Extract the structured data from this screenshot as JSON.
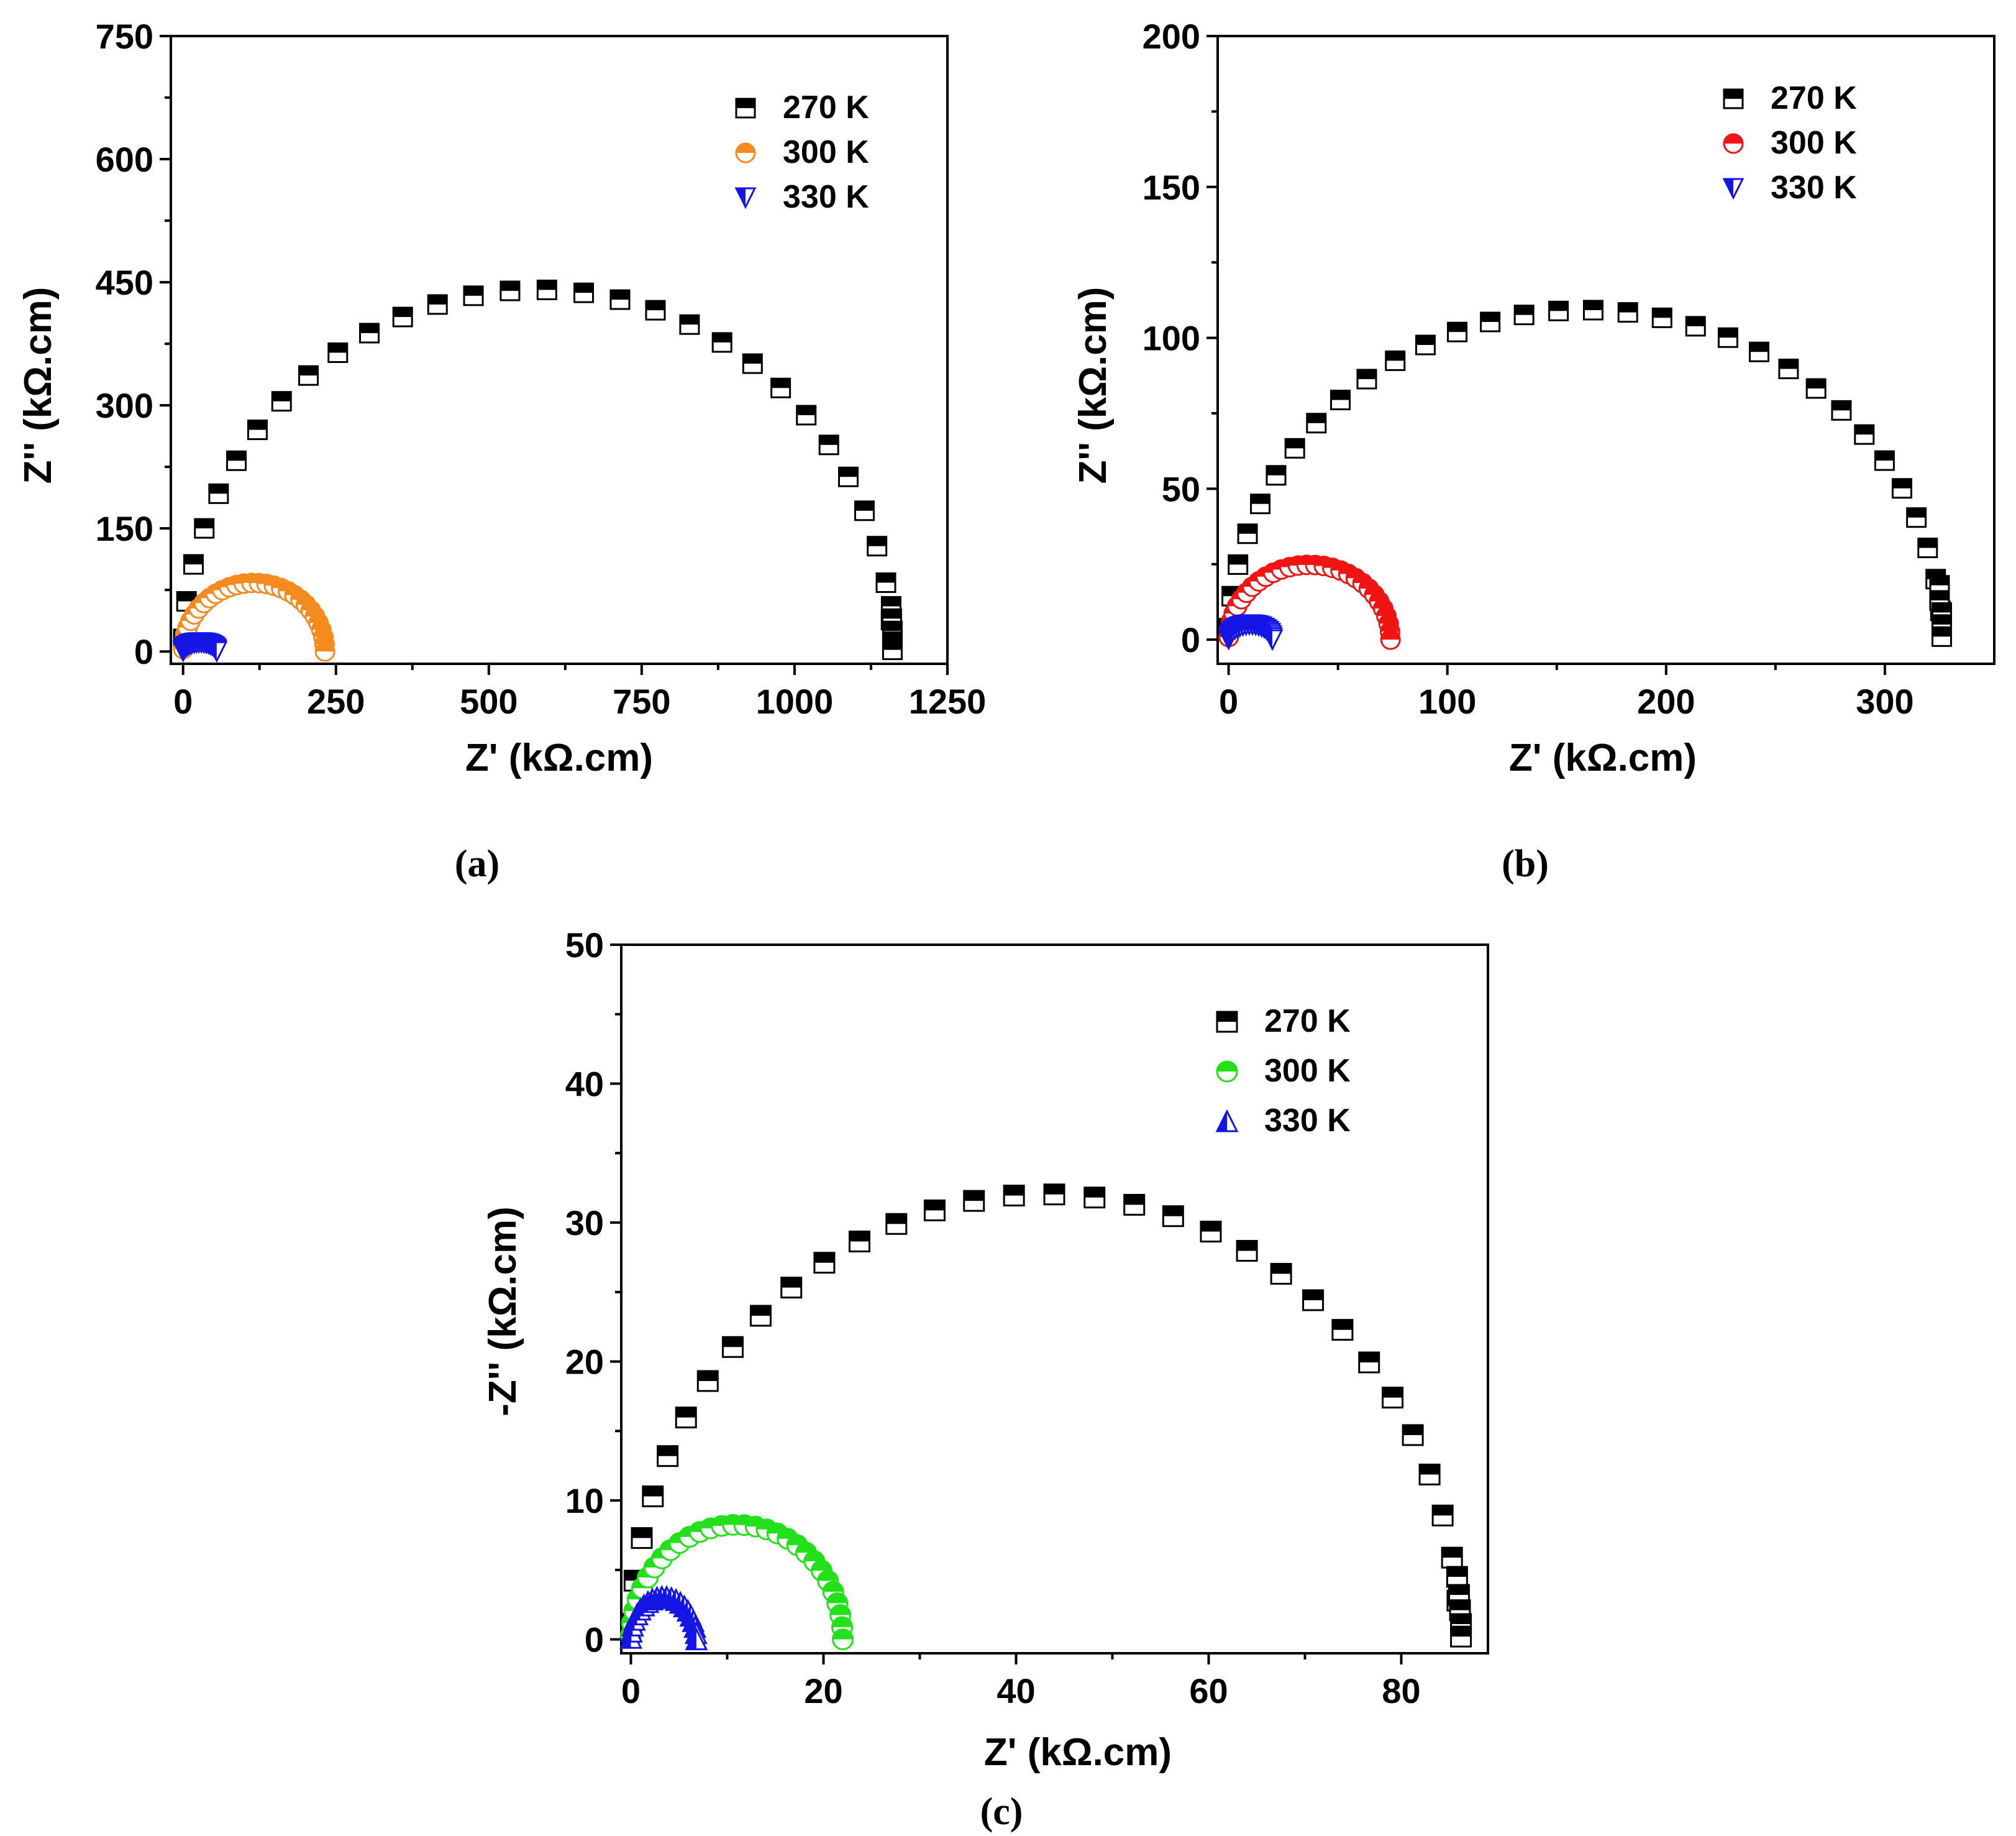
{
  "chart_data": [
    {
      "panel": "(a)",
      "type": "scatter",
      "xlabel": "Z' (kΩ.cm)",
      "ylabel": "Z'' (kΩ.cm)",
      "xlim": [
        -20,
        1250
      ],
      "ylim": [
        -15,
        750
      ],
      "xticks": [
        0,
        250,
        500,
        750,
        1000,
        1250
      ],
      "yticks": [
        0,
        150,
        300,
        450,
        600,
        750
      ],
      "legend_position": "top-right",
      "series": [
        {
          "name": "270 K",
          "marker": "square-half",
          "color": "#000000",
          "R": 1160,
          "start_deg": 178,
          "end_deg": 5,
          "n": 30,
          "tail": [
            [
              1158,
              55
            ],
            [
              1159,
              40
            ],
            [
              1160,
              25
            ],
            [
              1160,
              12
            ],
            [
              1160,
              2
            ]
          ]
        },
        {
          "name": "300 K",
          "marker": "circle-half",
          "color": "#f58a1e",
          "R": 232,
          "start_deg": 178,
          "end_deg": 0,
          "n": 30,
          "squash": 0.72,
          "tail": []
        },
        {
          "name": "330 K",
          "marker": "triangle-down-half",
          "color": "#1515e6",
          "R": 55,
          "start_deg": 178,
          "end_deg": 0,
          "n": 22,
          "squash": 0.4,
          "tail": []
        }
      ]
    },
    {
      "panel": "(b)",
      "type": "scatter",
      "xlabel": "Z' (kΩ.cm)",
      "ylabel": "Z'' (kΩ.cm)",
      "xlim": [
        -5,
        350
      ],
      "ylim": [
        -8,
        200
      ],
      "xticks": [
        0,
        100,
        200,
        300
      ],
      "yticks": [
        0,
        50,
        100,
        150,
        200
      ],
      "legend_position": "top-right",
      "series": [
        {
          "name": "270 K",
          "marker": "square-half",
          "color": "#000000",
          "R": 326,
          "start_deg": 178,
          "end_deg": 5,
          "n": 32,
          "squash": 0.67,
          "tail": [
            [
              325,
              18
            ],
            [
              325,
              13
            ],
            [
              326,
              9
            ],
            [
              326,
              5
            ],
            [
              326,
              1
            ]
          ]
        },
        {
          "name": "300 K",
          "marker": "circle-half",
          "color": "#f01414",
          "R": 74,
          "start_deg": 178,
          "end_deg": 0,
          "n": 30,
          "squash": 0.67,
          "tail": []
        },
        {
          "name": "330 K",
          "marker": "triangle-down-half",
          "color": "#1515e6",
          "R": 20,
          "start_deg": 178,
          "end_deg": 0,
          "n": 22,
          "squash": 0.5,
          "tail": []
        }
      ]
    },
    {
      "panel": "(c)",
      "type": "scatter",
      "xlabel": "Z' (kΩ.cm)",
      "ylabel": "-Z'' (kΩ.cm)",
      "xlim": [
        -1,
        89
      ],
      "ylim": [
        -1,
        50
      ],
      "xticks": [
        0,
        20,
        40,
        60,
        80
      ],
      "yticks": [
        0,
        10,
        20,
        30,
        40,
        50
      ],
      "legend_position": "top-right",
      "series": [
        {
          "name": "270 K",
          "marker": "square-half",
          "color": "#000000",
          "R": 86,
          "start_deg": 178,
          "end_deg": 5,
          "n": 32,
          "squash": 0.745,
          "tail": [
            [
              85.8,
              4.5
            ],
            [
              86,
              3.2
            ],
            [
              86.1,
              2.1
            ],
            [
              86.2,
              1.1
            ],
            [
              86.2,
              0.2
            ]
          ]
        },
        {
          "name": "300 K",
          "marker": "circle-half",
          "color": "#22e01a",
          "R": 22,
          "start_deg": 178,
          "end_deg": 0,
          "n": 30,
          "squash": 0.75,
          "tail": []
        },
        {
          "name": "330 K",
          "marker": "triangle-up-half",
          "color": "#1515e6",
          "R": 6.8,
          "start_deg": 178,
          "end_deg": 0,
          "n": 22,
          "squash": 0.9,
          "tail": []
        }
      ]
    }
  ]
}
